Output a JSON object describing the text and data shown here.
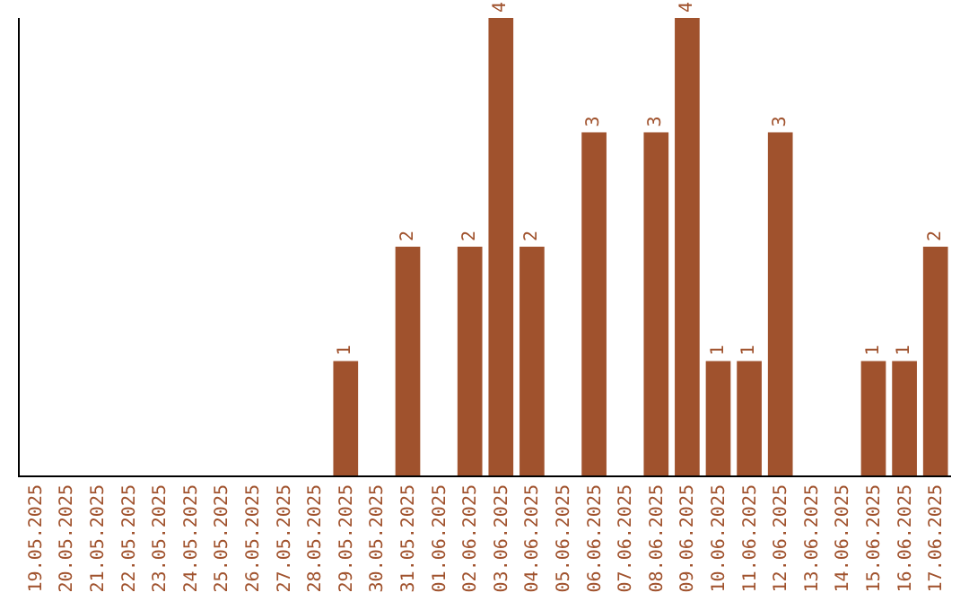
{
  "chart_data": {
    "type": "bar",
    "categories": [
      "19.05.2025",
      "20.05.2025",
      "21.05.2025",
      "22.05.2025",
      "23.05.2025",
      "24.05.2025",
      "25.05.2025",
      "26.05.2025",
      "27.05.2025",
      "28.05.2025",
      "29.05.2025",
      "30.05.2025",
      "31.05.2025",
      "01.06.2025",
      "02.06.2025",
      "03.06.2025",
      "04.06.2025",
      "05.06.2025",
      "06.06.2025",
      "07.06.2025",
      "08.06.2025",
      "09.06.2025",
      "10.06.2025",
      "11.06.2025",
      "12.06.2025",
      "13.06.2025",
      "14.06.2025",
      "15.06.2025",
      "16.06.2025",
      "17.06.2025"
    ],
    "values": [
      0,
      0,
      0,
      0,
      0,
      0,
      0,
      0,
      0,
      0,
      1,
      0,
      2,
      0,
      2,
      4,
      2,
      0,
      3,
      0,
      3,
      4,
      1,
      1,
      3,
      0,
      0,
      1,
      1,
      2
    ],
    "value_labels": [
      null,
      null,
      null,
      null,
      null,
      null,
      null,
      null,
      null,
      null,
      "1",
      null,
      "2",
      null,
      "2",
      "4",
      "2",
      null,
      "3",
      null,
      "3",
      "4",
      "1",
      "1",
      "3",
      null,
      null,
      "1",
      "1",
      "2"
    ],
    "color": "#a0522d",
    "ylim": [
      0,
      4
    ],
    "tick_labels": "x"
  }
}
